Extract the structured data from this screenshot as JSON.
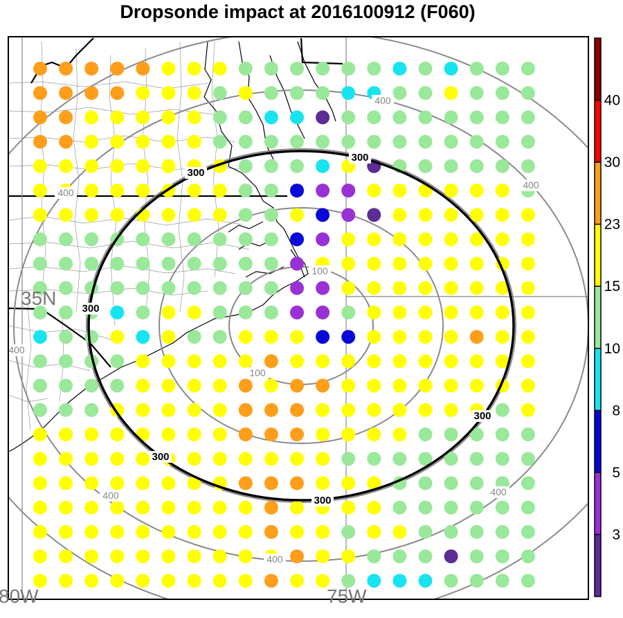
{
  "title": "Dropsonde impact at 2016100912 (F060)",
  "chart_data": {
    "type": "scatter",
    "title": "Dropsonde impact at 2016100912 (F060)",
    "grid": {
      "cols": 20,
      "rows": 22,
      "categories": [
        "lt3",
        "3-5",
        "5-8",
        "8-10",
        "10-15",
        "15-23",
        "23-30"
      ],
      "cells": [
        "66666555444444343444",
        "66665554544433445444",
        "66555554433044444444",
        "66555554444444444444",
        "55555555444350444444",
        "55555555442115555554",
        "55555555445210555555",
        "44444444442155555555",
        "44444444441555555555",
        "44444444441155555555",
        "44434554441145555555",
        "34453544555225555655",
        "44445555565555555555",
        "44445555656655555555",
        "44455555666555555545",
        "55555555666555544444",
        "55555555555544444444",
        "55555555666555444444",
        "55555555565555444444",
        "55555555565545544444",
        "55555555556554440444",
        "55555555565543334444"
      ]
    },
    "colorbar": {
      "ticks": [
        3,
        5,
        8,
        10,
        15,
        23,
        30,
        40
      ],
      "colors": [
        "#5d2c96",
        "#9a31d6",
        "#0808d8",
        "#18e4f0",
        "#9ae89a",
        "#ffff00",
        "#ff9e1a",
        "#ff0000",
        "#8f0000"
      ]
    },
    "contours": {
      "gray": [
        100,
        200,
        300,
        400,
        500
      ],
      "black": 300,
      "labels": [
        "100",
        "100",
        "300",
        "300",
        "300",
        "300",
        "300",
        "300",
        "400",
        "400",
        "400",
        "400",
        "400",
        "400",
        "400"
      ]
    },
    "axes": {
      "lat_label": "35N",
      "lon_labels": [
        "80W",
        "75W"
      ]
    }
  }
}
